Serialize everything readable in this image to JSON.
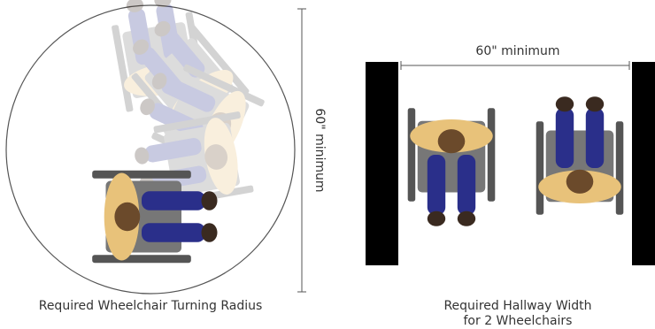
{
  "turning": {
    "dimension": "60\" minimum",
    "caption": "Required Wheelchair Turning Radius"
  },
  "hallway": {
    "dimension": "60\" minimum",
    "caption": [
      "Required Hallway Width",
      "for 2 Wheelchairs"
    ]
  }
}
